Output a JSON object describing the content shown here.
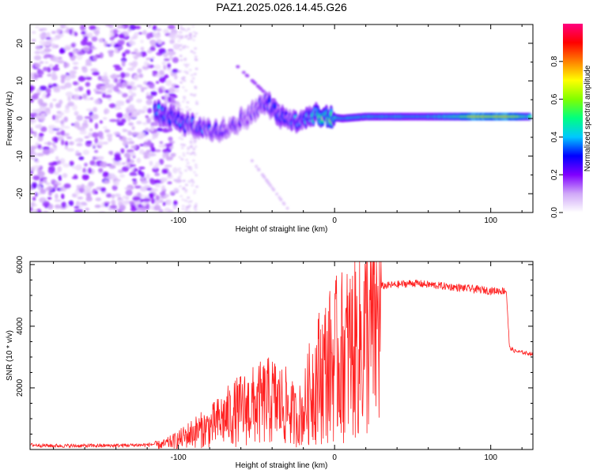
{
  "title": "PAZ1.2025.026.14.45.G26",
  "chart_data": [
    {
      "type": "heatmap",
      "xlabel": "Height of straight line (km)",
      "ylabel": "Frequency (Hz)",
      "xlim": [
        -195,
        127
      ],
      "ylim": [
        -25,
        25
      ],
      "x_ticks": [
        -100,
        0,
        100
      ],
      "x_tick_labels": [
        "-100",
        "0",
        "100"
      ],
      "y_ticks": [
        -20,
        -10,
        0,
        10,
        20
      ],
      "y_tick_labels": [
        "-20",
        "-10",
        "0",
        "10",
        "20"
      ],
      "colorbar": {
        "label": "Normalized spectral amplitude",
        "range": [
          0,
          1
        ],
        "ticks": [
          0.0,
          0.2,
          0.4,
          0.6,
          0.8
        ],
        "tick_labels": [
          "0.0",
          "0.2",
          "0.4",
          "0.6",
          "0.8"
        ],
        "colors": [
          "#ffffff",
          "#d0a8f8",
          "#8000ff",
          "#0000ff",
          "#00c8ff",
          "#00ff80",
          "#80ff00",
          "#ffff00",
          "#ff8000",
          "#ff0000",
          "#ff0080"
        ]
      },
      "ridge": [
        {
          "x": -115,
          "y": 2,
          "amp": 0.35
        },
        {
          "x": -105,
          "y": 0.5,
          "amp": 0.3
        },
        {
          "x": -95,
          "y": -1.5,
          "amp": 0.3
        },
        {
          "x": -85,
          "y": -3,
          "amp": 0.3
        },
        {
          "x": -75,
          "y": -3.5,
          "amp": 0.25
        },
        {
          "x": -65,
          "y": -1.5,
          "amp": 0.25
        },
        {
          "x": -55,
          "y": 0.5,
          "amp": 0.22
        },
        {
          "x": -45,
          "y": 4.5,
          "amp": 0.25
        },
        {
          "x": -35,
          "y": 1,
          "amp": 0.3
        },
        {
          "x": -25,
          "y": -1,
          "amp": 0.35
        },
        {
          "x": -15,
          "y": 1,
          "amp": 0.4
        },
        {
          "x": -5,
          "y": 0.5,
          "amp": 0.6
        },
        {
          "x": 5,
          "y": 0,
          "amp": 0.45
        },
        {
          "x": 20,
          "y": 0.5,
          "amp": 0.45
        },
        {
          "x": 40,
          "y": 0.5,
          "amp": 0.45
        },
        {
          "x": 60,
          "y": 0.5,
          "amp": 0.45
        },
        {
          "x": 80,
          "y": 0.5,
          "amp": 0.55
        },
        {
          "x": 90,
          "y": 0.5,
          "amp": 0.8
        },
        {
          "x": 100,
          "y": 0.5,
          "amp": 0.7
        },
        {
          "x": 110,
          "y": 0.5,
          "amp": 0.8
        },
        {
          "x": 125,
          "y": 0.5,
          "amp": 0.5
        }
      ]
    },
    {
      "type": "line",
      "xlabel": "Height of straight line (km)",
      "ylabel": "SNR (10 * v/v)",
      "xlim": [
        -195,
        127
      ],
      "ylim": [
        0,
        6100
      ],
      "x_ticks": [
        -100,
        0,
        100
      ],
      "x_tick_labels": [
        "-100",
        "0",
        "100"
      ],
      "y_ticks": [
        2000,
        4000,
        6000
      ],
      "y_tick_labels": [
        "2000",
        "4000",
        "6000"
      ],
      "color": "#ff2020",
      "series": [
        {
          "x": [
            -195,
            -180,
            -160,
            -140,
            -120,
            -110,
            -100,
            -90,
            -80,
            -70,
            -60,
            -50,
            -40,
            -30,
            -25,
            -20,
            -15,
            -10,
            -5,
            0,
            5,
            10,
            15,
            20,
            30,
            40,
            50,
            60,
            70,
            80,
            90,
            100,
            110,
            112,
            115,
            120,
            127
          ],
          "values": [
            150,
            120,
            120,
            130,
            150,
            200,
            400,
            700,
            900,
            1300,
            1600,
            1800,
            2000,
            1700,
            1300,
            1500,
            2500,
            3000,
            3300,
            3600,
            3800,
            4000,
            4200,
            4600,
            5300,
            5350,
            5400,
            5350,
            5300,
            5250,
            5200,
            5150,
            5150,
            3300,
            3200,
            3150,
            3100
          ]
        }
      ]
    }
  ]
}
